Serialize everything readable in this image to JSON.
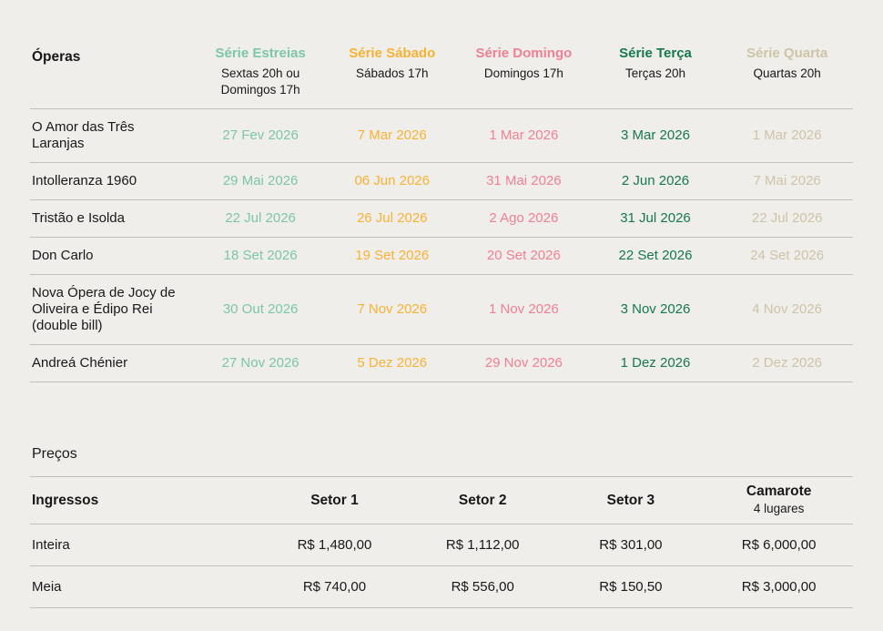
{
  "page": {
    "background": "#f0eeea",
    "text_color": "#191817",
    "divider_color": "#c3c0ba"
  },
  "operas_table": {
    "title_col_header": "Óperas",
    "columns": [
      {
        "label": "Série Estreias",
        "sub": "Sextas 20h ou Domingos 17h",
        "color": "#7cc6aa"
      },
      {
        "label": "Série Sábado",
        "sub": "Sábados 17h",
        "color": "#f8b234"
      },
      {
        "label": "Série Domingo",
        "sub": "Domingos 17h",
        "color": "#f08093"
      },
      {
        "label": "Série Terça",
        "sub": "Terças 20h",
        "color": "#15794d"
      },
      {
        "label": "Série Quarta",
        "sub": "Quartas 20h",
        "color": "#cdc4a7"
      }
    ],
    "rows": [
      {
        "opera": "O Amor das Três Laranjas",
        "dates": [
          "27 Fev 2026",
          "7 Mar 2026",
          "1 Mar 2026",
          "3 Mar 2026",
          "1 Mar 2026"
        ]
      },
      {
        "opera": "Intolleranza 1960",
        "dates": [
          "29 Mai 2026",
          "06 Jun 2026",
          "31 Mai 2026",
          "2 Jun 2026",
          "7 Mai 2026"
        ]
      },
      {
        "opera": "Tristão e Isolda",
        "dates": [
          "22 Jul 2026",
          "26 Jul 2026",
          "2 Ago 2026",
          "31 Jul 2026",
          "22 Jul 2026"
        ]
      },
      {
        "opera": "Don Carlo",
        "dates": [
          "18 Set 2026",
          "19 Set 2026",
          "20 Set 2026",
          "22 Set 2026",
          "24 Set 2026"
        ]
      },
      {
        "opera": "Nova Ópera de Jocy de Oliveira e Édipo Rei (double bill)",
        "dates": [
          "30 Out 2026",
          "7 Nov 2026",
          "1 Nov 2026",
          "3 Nov 2026",
          "4 Nov 2026"
        ]
      },
      {
        "opera": "Andreá Chénier",
        "dates": [
          "27 Nov 2026",
          "5 Dez 2026",
          "29 Nov 2026",
          "1 Dez 2026",
          "2 Dez 2026"
        ]
      }
    ]
  },
  "prices": {
    "section_title": "Preços",
    "row_header": "Ingressos",
    "columns": [
      {
        "label": "Setor 1",
        "sub": ""
      },
      {
        "label": "Setor 2",
        "sub": ""
      },
      {
        "label": "Setor 3",
        "sub": ""
      },
      {
        "label": "Camarote",
        "sub": "4 lugares"
      }
    ],
    "rows": [
      {
        "type": "Inteira",
        "values": [
          "R$ 1,480,00",
          "R$ 1,112,00",
          "R$ 301,00",
          "R$ 6,000,00"
        ]
      },
      {
        "type": "Meia",
        "values": [
          "R$ 740,00",
          "R$ 556,00",
          "R$ 150,50",
          "R$ 3,000,00"
        ]
      }
    ]
  }
}
